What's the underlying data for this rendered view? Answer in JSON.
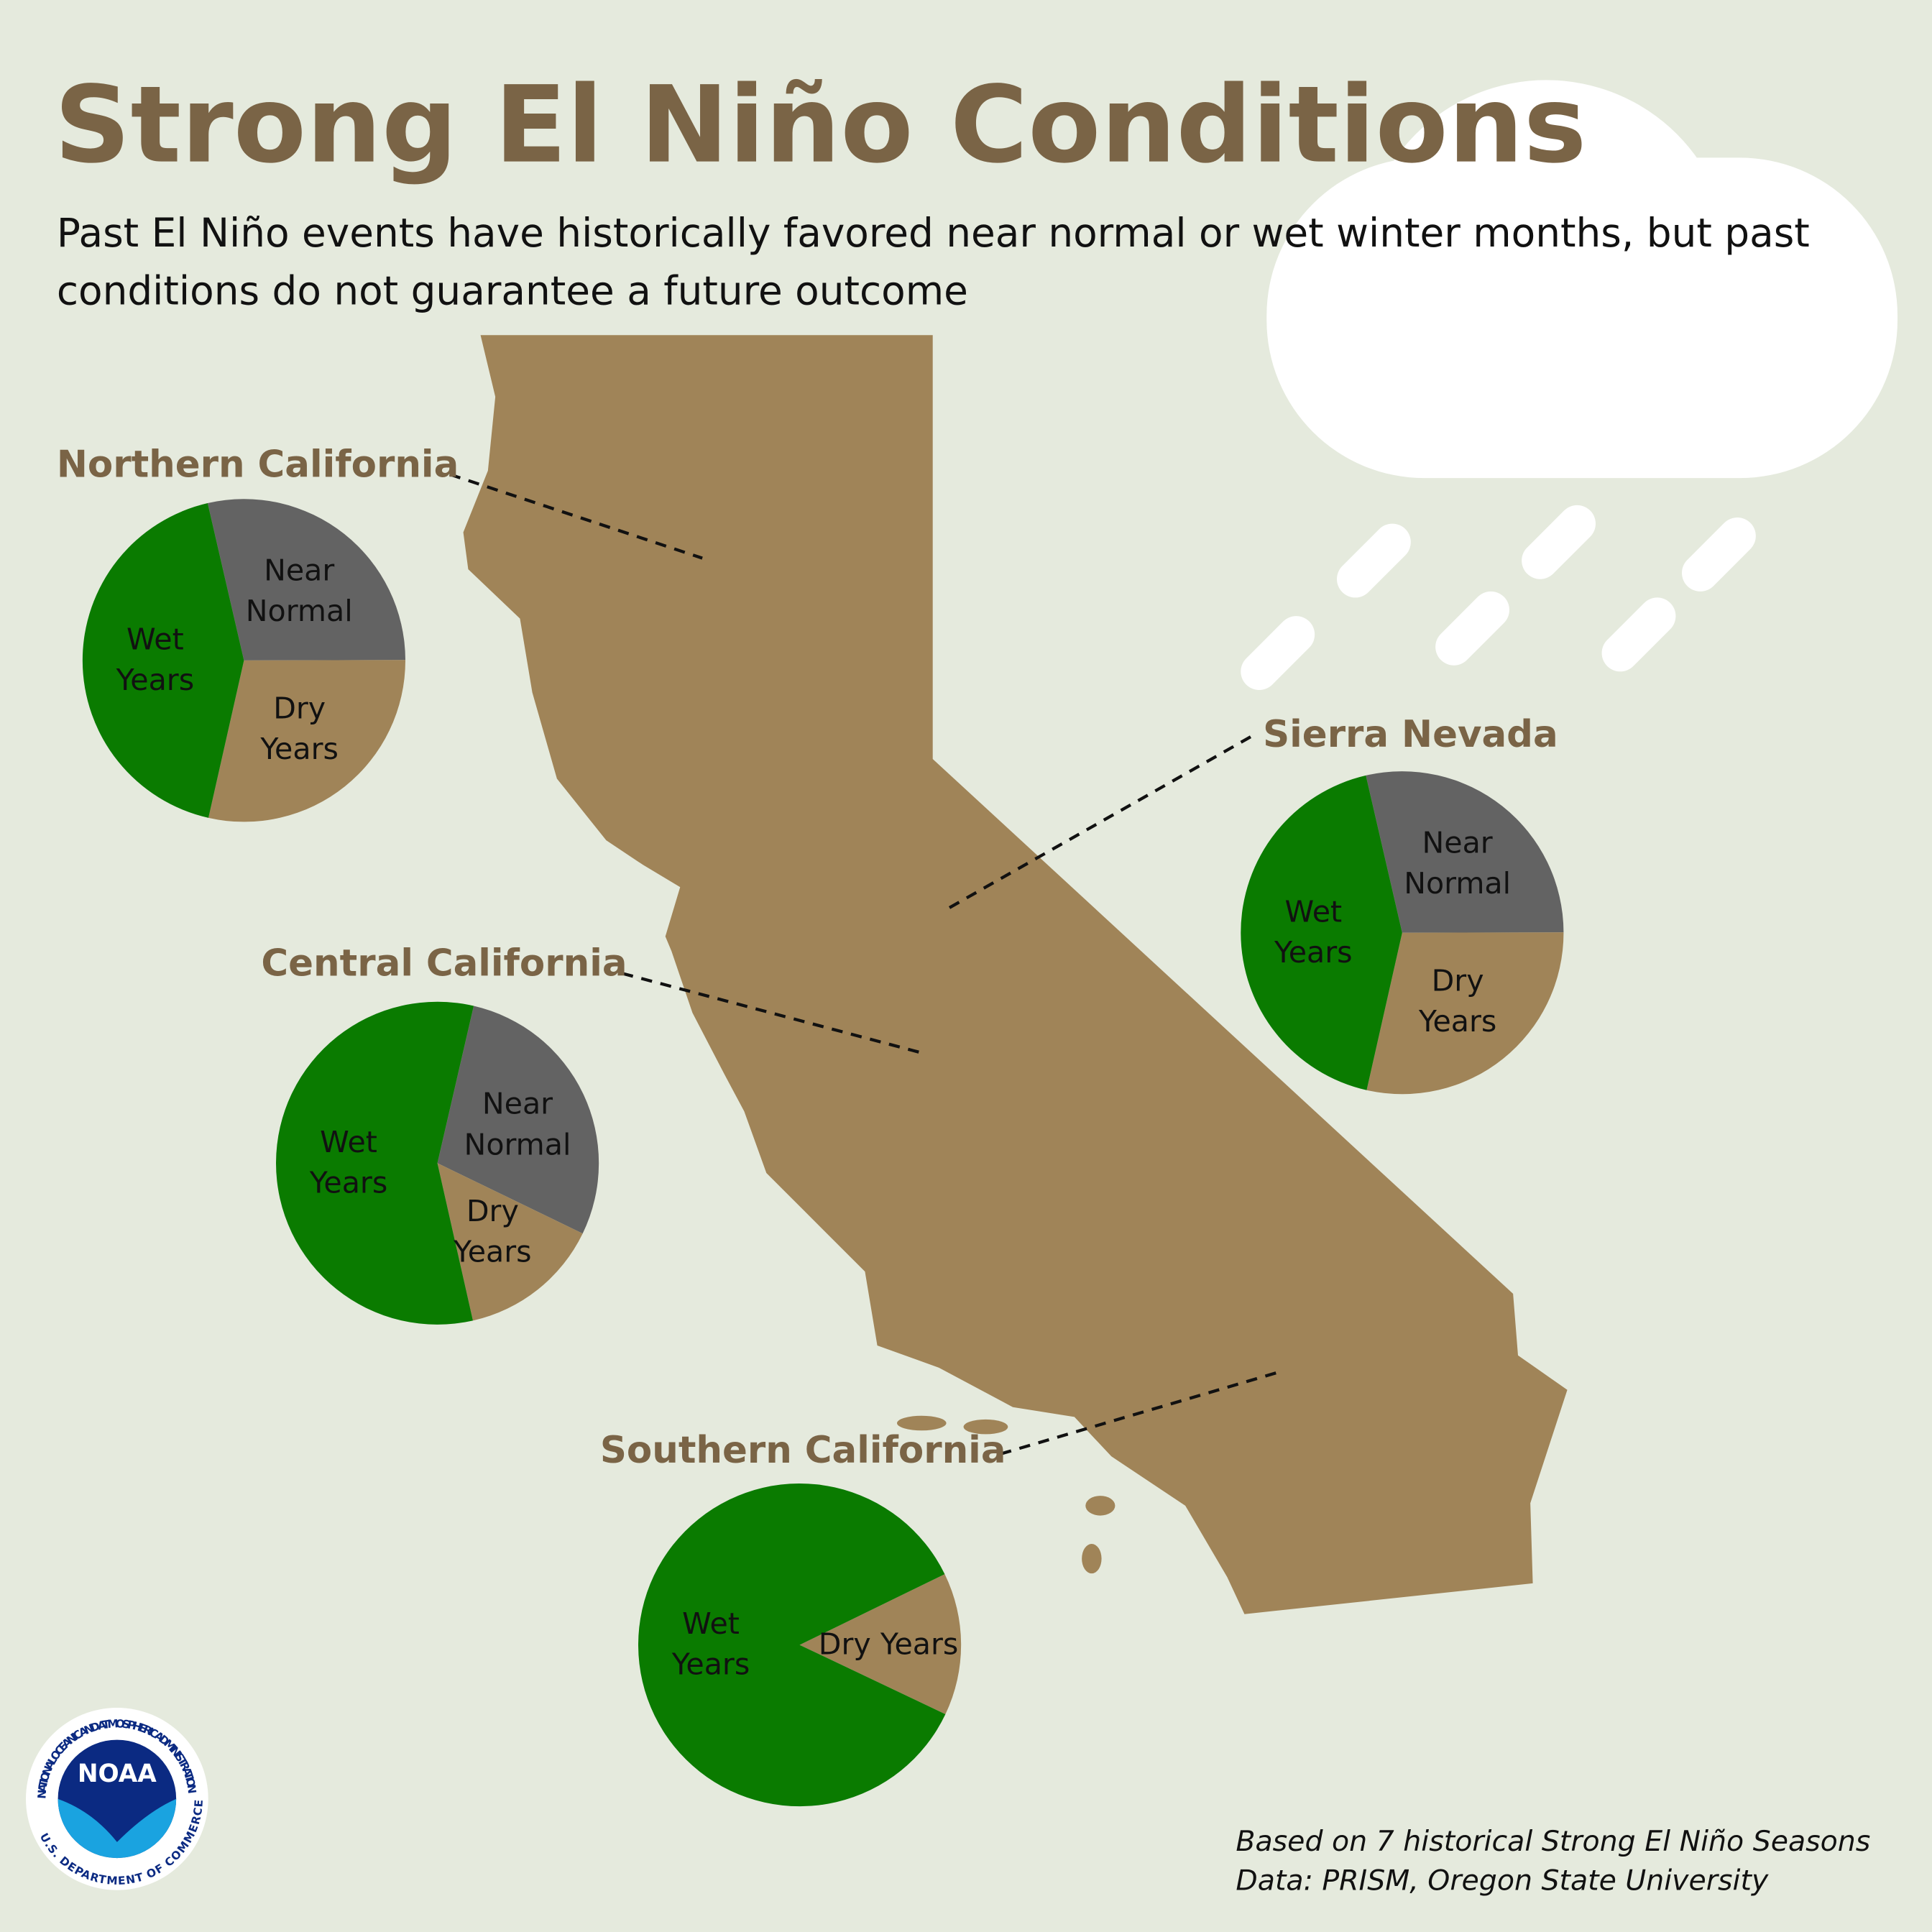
{
  "title": "Strong El Niño Conditions",
  "subtitle": "Past El Niño events have historically favored near normal or wet winter months, but past conditions do not guarantee a future outcome",
  "notes": [
    "Based on 7 historical Strong El Niño Seasons",
    "Data: PRISM, Oregon State University"
  ],
  "logo": {
    "name": "NOAA",
    "ring_top": "NATIONAL OCEANIC AND ATMOSPHERIC ADMINISTRATION",
    "ring_bottom": "U.S. DEPARTMENT OF COMMERCE"
  },
  "chart_data": [
    {
      "type": "pie",
      "title": "Northern California",
      "categories": [
        "Near Normal",
        "Dry Years",
        "Wet Years"
      ],
      "values": [
        2,
        2,
        3
      ],
      "colors": [
        "#636363",
        "#a08458",
        "#0a7b00"
      ],
      "startangle": -13
    },
    {
      "type": "pie",
      "title": "Central California",
      "categories": [
        "Near Normal",
        "Dry Years",
        "Wet Years"
      ],
      "values": [
        2,
        1,
        4
      ],
      "colors": [
        "#636363",
        "#a08458",
        "#0a7b00"
      ],
      "startangle": 13
    },
    {
      "type": "pie",
      "title": "Sierra Nevada",
      "categories": [
        "Near Normal",
        "Dry Years",
        "Wet Years"
      ],
      "values": [
        2,
        2,
        3
      ],
      "colors": [
        "#636363",
        "#a08458",
        "#0a7b00"
      ],
      "startangle": -13
    },
    {
      "type": "pie",
      "title": "Southern California",
      "categories": [
        "Dry Years",
        "Wet Years"
      ],
      "values": [
        1,
        6
      ],
      "colors": [
        "#a08458",
        "#0a7b00"
      ],
      "startangle": 64
    }
  ]
}
